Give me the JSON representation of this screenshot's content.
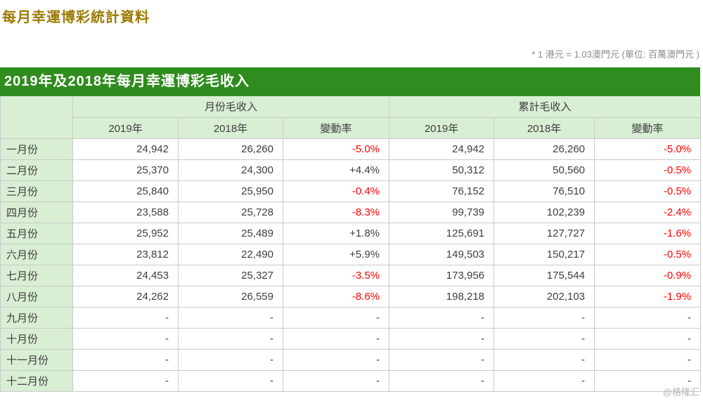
{
  "page": {
    "title": "每月幸運博彩統計資料",
    "note": "* 1 港元 = 1.03澳門元 (單位: 百萬澳門元 )",
    "watermark": "@格隆汇"
  },
  "colors": {
    "title_text": "#9c7a00",
    "bar_background": "#2f8c1f",
    "bar_text": "#ffffff",
    "header_cell_background": "#d9efd3",
    "negative_change_text": "#ff0000",
    "body_text": "#3e3e3e",
    "note_text": "#8a8a8a",
    "border": "#c9c9c9"
  },
  "table": {
    "title": "2019年及2018年每月幸運博彩毛收入",
    "group_headers": [
      "月份毛收入",
      "累計毛收入"
    ],
    "column_headers": [
      "2019年",
      "2018年",
      "變動率",
      "2019年",
      "2018年",
      "變動率"
    ],
    "rows": [
      {
        "month": "一月份",
        "monthly": {
          "y2019": "24,942",
          "y2018": "26,260",
          "change": "-5.0%"
        },
        "cumulative": {
          "y2019": "24,942",
          "y2018": "26,260",
          "change": "-5.0%"
        }
      },
      {
        "month": "二月份",
        "monthly": {
          "y2019": "25,370",
          "y2018": "24,300",
          "change": "+4.4%"
        },
        "cumulative": {
          "y2019": "50,312",
          "y2018": "50,560",
          "change": "-0.5%"
        }
      },
      {
        "month": "三月份",
        "monthly": {
          "y2019": "25,840",
          "y2018": "25,950",
          "change": "-0.4%"
        },
        "cumulative": {
          "y2019": "76,152",
          "y2018": "76,510",
          "change": "-0.5%"
        }
      },
      {
        "month": "四月份",
        "monthly": {
          "y2019": "23,588",
          "y2018": "25,728",
          "change": "-8.3%"
        },
        "cumulative": {
          "y2019": "99,739",
          "y2018": "102,239",
          "change": "-2.4%"
        }
      },
      {
        "month": "五月份",
        "monthly": {
          "y2019": "25,952",
          "y2018": "25,489",
          "change": "+1.8%"
        },
        "cumulative": {
          "y2019": "125,691",
          "y2018": "127,727",
          "change": "-1.6%"
        }
      },
      {
        "month": "六月份",
        "monthly": {
          "y2019": "23,812",
          "y2018": "22,490",
          "change": "+5.9%"
        },
        "cumulative": {
          "y2019": "149,503",
          "y2018": "150,217",
          "change": "-0.5%"
        }
      },
      {
        "month": "七月份",
        "monthly": {
          "y2019": "24,453",
          "y2018": "25,327",
          "change": "-3.5%"
        },
        "cumulative": {
          "y2019": "173,956",
          "y2018": "175,544",
          "change": "-0.9%"
        }
      },
      {
        "month": "八月份",
        "monthly": {
          "y2019": "24,262",
          "y2018": "26,559",
          "change": "-8.6%"
        },
        "cumulative": {
          "y2019": "198,218",
          "y2018": "202,103",
          "change": "-1.9%"
        }
      },
      {
        "month": "九月份",
        "monthly": {
          "y2019": "-",
          "y2018": "-",
          "change": "-"
        },
        "cumulative": {
          "y2019": "-",
          "y2018": "-",
          "change": "-"
        }
      },
      {
        "month": "十月份",
        "monthly": {
          "y2019": "-",
          "y2018": "-",
          "change": "-"
        },
        "cumulative": {
          "y2019": "-",
          "y2018": "-",
          "change": "-"
        }
      },
      {
        "month": "十一月份",
        "monthly": {
          "y2019": "-",
          "y2018": "-",
          "change": "-"
        },
        "cumulative": {
          "y2019": "-",
          "y2018": "-",
          "change": "-"
        }
      },
      {
        "month": "十二月份",
        "monthly": {
          "y2019": "-",
          "y2018": "-",
          "change": "-"
        },
        "cumulative": {
          "y2019": "-",
          "y2018": "-",
          "change": "-"
        }
      }
    ]
  }
}
